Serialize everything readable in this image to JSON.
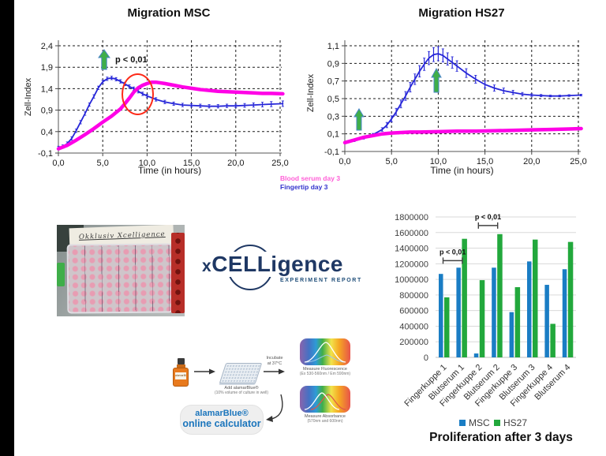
{
  "logo": {
    "x": "x",
    "cell": "CELL",
    "igence": "igence",
    "subtitle": "Experiment Report"
  },
  "photo": {
    "caption": "Okklusiv Xcelligence"
  },
  "workflow": {
    "bottle_label": "alamarBlue",
    "add_line1": "Add alamarBlue®",
    "add_line2": "(10% volume of culture in well)",
    "incubate_line1": "Incubate",
    "incubate_line2": "at 37°C",
    "fluor_line1": "Measure Fluorescence",
    "fluor_line2": "(Ex 530-560nm / Em 590nm)",
    "abs_line1": "Measure Absorbance",
    "abs_line2": "(570nm and 600nm)",
    "calc_line1": "alamarBlue®",
    "calc_line2": "online calculator"
  },
  "chart_data": [
    {
      "type": "line",
      "title": "Migration MSC",
      "xlabel": "Time (in hours)",
      "ylabel": "Zell-Index",
      "xlim": [
        0,
        25.5
      ],
      "ylim": [
        -0.1,
        2.4
      ],
      "xtick_labels": [
        "0,0",
        "5,0",
        "10,0",
        "15,0",
        "20,0",
        "25,0"
      ],
      "ytick_labels": [
        "2,4",
        "1,9",
        "1,4",
        "0,9",
        "0,4",
        "-0,1"
      ],
      "grid": "dashed both axes",
      "annotations": [
        {
          "type": "text-with-green-arrow",
          "label": "p < 0,01",
          "x": 5,
          "y": 2.1
        },
        {
          "type": "red-circle",
          "label": "",
          "x": 8.6,
          "y": 1.3
        }
      ],
      "series": [
        {
          "name": "Fingertip day 3",
          "color": "#2626d8",
          "error_bar": 0.04,
          "points": [
            [
              0,
              0.02
            ],
            [
              0.5,
              0.05
            ],
            [
              1,
              0.12
            ],
            [
              1.5,
              0.24
            ],
            [
              2,
              0.42
            ],
            [
              2.5,
              0.62
            ],
            [
              3,
              0.82
            ],
            [
              3.5,
              1.03
            ],
            [
              4,
              1.22
            ],
            [
              4.5,
              1.42
            ],
            [
              5,
              1.56
            ],
            [
              5.5,
              1.63
            ],
            [
              6,
              1.65
            ],
            [
              6.5,
              1.62
            ],
            [
              7,
              1.57
            ],
            [
              7.5,
              1.51
            ],
            [
              8,
              1.45
            ],
            [
              8.5,
              1.4
            ],
            [
              9,
              1.34
            ],
            [
              9.5,
              1.28
            ],
            [
              10,
              1.23
            ],
            [
              11,
              1.15
            ],
            [
              12,
              1.09
            ],
            [
              13,
              1.05
            ],
            [
              14,
              1.02
            ],
            [
              15,
              1.01
            ],
            [
              16,
              1.0
            ],
            [
              17,
              0.99
            ],
            [
              18,
              0.99
            ],
            [
              19,
              1.0
            ],
            [
              20,
              1.0
            ],
            [
              21,
              1.01,
              0.045
            ],
            [
              22,
              1.02,
              0.05
            ],
            [
              23,
              1.03,
              0.055
            ],
            [
              24,
              1.04,
              0.06
            ],
            [
              25.3,
              1.05,
              0.065
            ]
          ]
        },
        {
          "name": "Blood serum day 3",
          "color": "#ff00e6",
          "error_bar": 0,
          "points": [
            [
              0,
              0.0
            ],
            [
              1,
              0.08
            ],
            [
              2,
              0.2
            ],
            [
              3,
              0.33
            ],
            [
              4,
              0.47
            ],
            [
              5,
              0.62
            ],
            [
              6,
              0.76
            ],
            [
              7,
              0.93
            ],
            [
              7.5,
              1.05
            ],
            [
              8,
              1.18
            ],
            [
              8.5,
              1.32
            ],
            [
              9,
              1.42
            ],
            [
              9.5,
              1.48
            ],
            [
              10,
              1.52
            ],
            [
              10.5,
              1.55
            ],
            [
              11,
              1.55
            ],
            [
              12,
              1.52
            ],
            [
              13,
              1.48
            ],
            [
              14,
              1.44
            ],
            [
              15,
              1.41
            ],
            [
              16,
              1.38
            ],
            [
              17,
              1.36
            ],
            [
              18,
              1.34
            ],
            [
              19,
              1.33
            ],
            [
              20,
              1.32
            ],
            [
              21,
              1.31
            ],
            [
              22,
              1.3
            ],
            [
              23,
              1.29
            ],
            [
              24,
              1.29
            ],
            [
              25.3,
              1.28
            ]
          ]
        }
      ]
    },
    {
      "type": "line",
      "title": "Migration HS27",
      "xlabel": "Time (in hours)",
      "ylabel": "Zell-Index",
      "xlim": [
        0,
        25.5
      ],
      "ylim": [
        -0.1,
        1.1
      ],
      "xtick_labels": [
        "0,0",
        "5,0",
        "10,0",
        "15,0",
        "20,0",
        "25,0"
      ],
      "ytick_labels": [
        "1,1",
        "0,9",
        "0,7",
        "0,5",
        "0,3",
        "0,1",
        "-0,1"
      ],
      "grid": "dashed both axes",
      "annotations": [
        {
          "type": "green-arrow",
          "label": "",
          "x": 1.6,
          "y": 0.3
        },
        {
          "type": "green-arrow",
          "label": "",
          "x": 9.8,
          "y": 0.75
        }
      ],
      "series": [
        {
          "name": "Fingertip day 3",
          "color": "#2626d8",
          "error_bar": 0.02,
          "points": [
            [
              0,
              0.0,
              0.005
            ],
            [
              1,
              0.02,
              0.008
            ],
            [
              2,
              0.05,
              0.01
            ],
            [
              3,
              0.09,
              0.015
            ],
            [
              4,
              0.15,
              0.02
            ],
            [
              4.5,
              0.2,
              0.03
            ],
            [
              5,
              0.27,
              0.035
            ],
            [
              5.5,
              0.35,
              0.04
            ],
            [
              6,
              0.44,
              0.045
            ],
            [
              6.5,
              0.53,
              0.05
            ],
            [
              7,
              0.63,
              0.055
            ],
            [
              7.5,
              0.72,
              0.06
            ],
            [
              8,
              0.81,
              0.065
            ],
            [
              8.5,
              0.89,
              0.07
            ],
            [
              9,
              0.96,
              0.075
            ],
            [
              9.5,
              1.0,
              0.08
            ],
            [
              10,
              1.01,
              0.08
            ],
            [
              10.5,
              0.99,
              0.075
            ],
            [
              11,
              0.95,
              0.07
            ],
            [
              11.5,
              0.91,
              0.065
            ],
            [
              12,
              0.87,
              0.06
            ],
            [
              13,
              0.79,
              0.05
            ],
            [
              14,
              0.72,
              0.045
            ],
            [
              15,
              0.66,
              0.04
            ],
            [
              16,
              0.62,
              0.035
            ],
            [
              17,
              0.59,
              0.03
            ],
            [
              18,
              0.57,
              0.025
            ],
            [
              19,
              0.55,
              0.02
            ],
            [
              20,
              0.54,
              0.015
            ],
            [
              21,
              0.535,
              0.012
            ],
            [
              22,
              0.53,
              0.01
            ],
            [
              23,
              0.53,
              0.01
            ],
            [
              24,
              0.535,
              0.01
            ],
            [
              25.3,
              0.54,
              0.01
            ]
          ]
        },
        {
          "name": "Blood serum day 3",
          "color": "#ff00e6",
          "error_bar": 0,
          "points": [
            [
              0,
              0.0
            ],
            [
              1,
              0.03
            ],
            [
              2,
              0.06
            ],
            [
              3,
              0.08
            ],
            [
              4,
              0.1
            ],
            [
              5,
              0.11
            ],
            [
              6,
              0.115
            ],
            [
              7,
              0.12
            ],
            [
              8,
              0.12
            ],
            [
              10,
              0.125
            ],
            [
              12,
              0.13
            ],
            [
              14,
              0.13
            ],
            [
              16,
              0.135
            ],
            [
              18,
              0.14
            ],
            [
              20,
              0.145
            ],
            [
              22,
              0.15
            ],
            [
              24,
              0.155
            ],
            [
              25.3,
              0.16
            ]
          ]
        }
      ]
    },
    {
      "type": "bar",
      "title": "Proliferation after 3 days",
      "categories": [
        "Fingerkuppe 1",
        "Blutserum 1",
        "Fingerkuppe 2",
        "Blutserum 2",
        "Fingerkuppe 3",
        "Blutserum 3",
        "Fingerkuppe 4",
        "Blutserum 4"
      ],
      "series": [
        {
          "name": "MSC",
          "color": "#1a7dc4",
          "values": [
            1070000,
            1150000,
            50000,
            1150000,
            580000,
            1230000,
            930000,
            1130000
          ]
        },
        {
          "name": "HS27",
          "color": "#22a83c",
          "values": [
            770000,
            1520000,
            990000,
            1580000,
            900000,
            1510000,
            430000,
            1480000
          ]
        }
      ],
      "ylim": [
        0,
        1800000
      ],
      "ytick_step": 200000,
      "grid": "horizontal light",
      "legend_position": "bottom",
      "annotations": [
        {
          "label": "p < 0,01",
          "between": [
            "Fingerkuppe 1",
            "Blutserum 1"
          ],
          "bracket_y": 1240000
        },
        {
          "label": "p < 0,01",
          "between": [
            "Fingerkuppe 2",
            "Blutserum 2"
          ],
          "bracket_y": 1690000
        }
      ]
    }
  ]
}
